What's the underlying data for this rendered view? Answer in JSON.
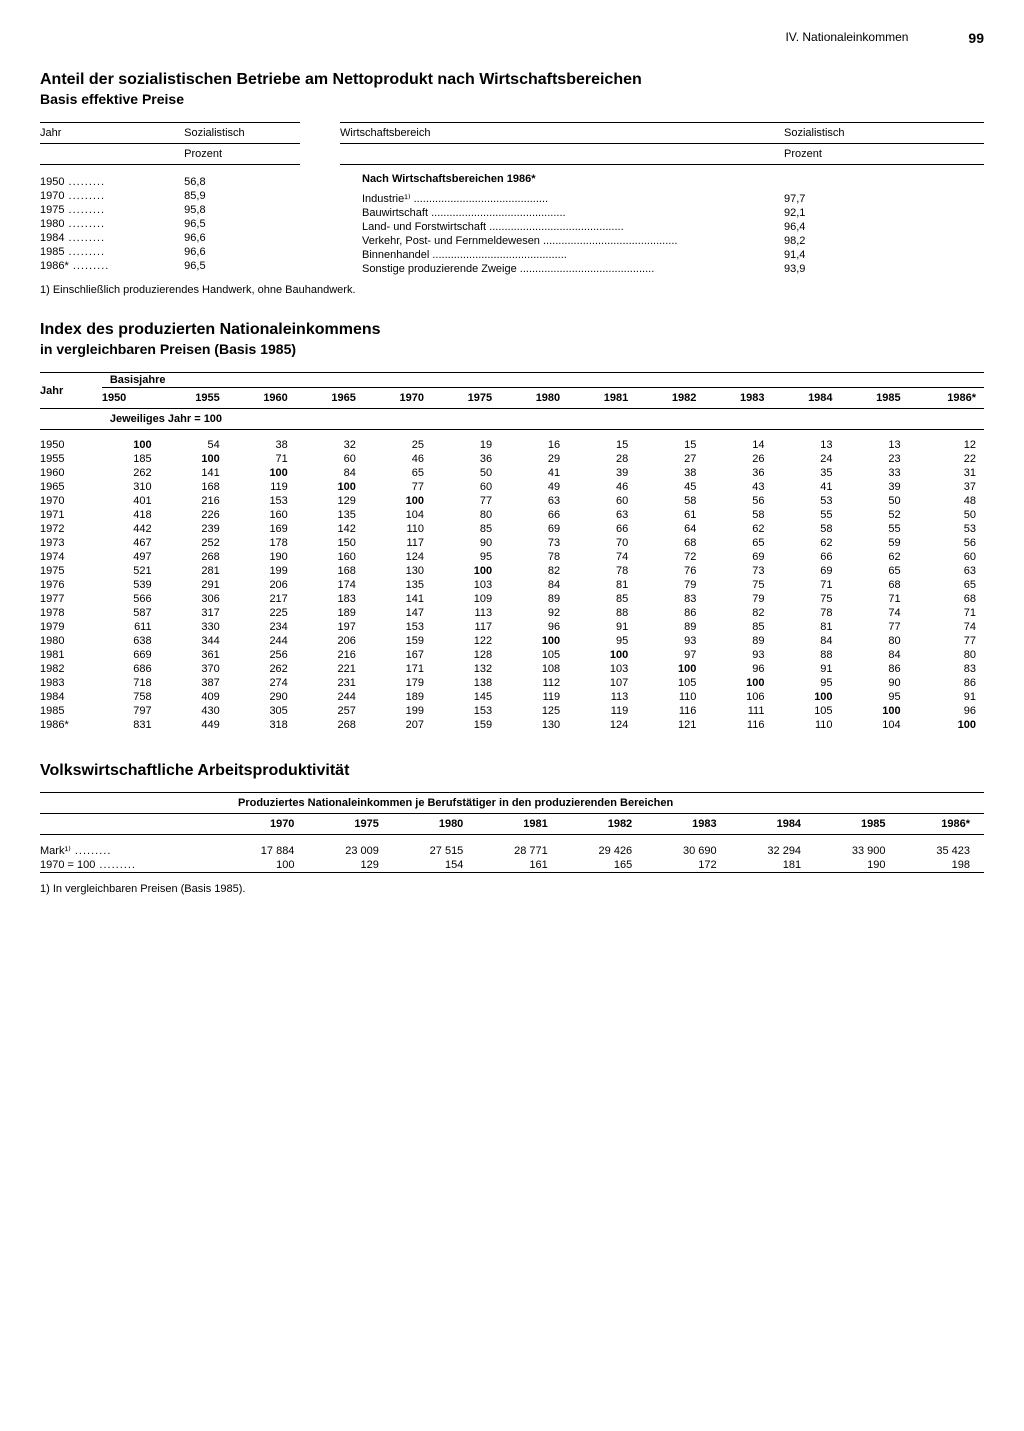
{
  "header": {
    "section": "IV. Nationaleinkommen",
    "page": "99"
  },
  "t1": {
    "title": "Anteil der sozialistischen Betriebe am Nettoprodukt nach Wirtschaftsbereichen",
    "subtitle": "Basis effektive Preise",
    "col_jahr": "Jahr",
    "col_soz": "Sozialistisch",
    "col_prozent": "Prozent",
    "col_bereich": "Wirtschaftsbereich",
    "left_rows": [
      {
        "y": "1950",
        "v": "56,8"
      },
      {
        "y": "1970",
        "v": "85,9"
      },
      {
        "y": "1975",
        "v": "95,8"
      },
      {
        "y": "1980",
        "v": "96,5"
      },
      {
        "y": "1984",
        "v": "96,6"
      },
      {
        "y": "1985",
        "v": "96,6"
      },
      {
        "y": "1986*",
        "v": "96,5"
      }
    ],
    "right_heading": "Nach Wirtschaftsbereichen 1986*",
    "right_rows": [
      {
        "label": "Industrie¹⁾",
        "v": "97,7"
      },
      {
        "label": "Bauwirtschaft",
        "v": "92,1"
      },
      {
        "label": "Land- und Forstwirtschaft",
        "v": "96,4"
      },
      {
        "label": "Verkehr, Post- und Fernmeldewesen",
        "v": "98,2"
      },
      {
        "label": "Binnenhandel",
        "v": "91,4"
      },
      {
        "label": "Sonstige produzierende Zweige",
        "v": "93,9"
      }
    ],
    "footnote": "1) Einschließlich produzierendes Handwerk, ohne Bauhandwerk."
  },
  "t2": {
    "title": "Index des produzierten Nationaleinkommens",
    "subtitle": "in vergleichbaren Preisen (Basis 1985)",
    "col_jahr": "Jahr",
    "col_basis": "Basisjahre",
    "sub_label": "Jeweiliges Jahr = 100",
    "cols": [
      "1950",
      "1955",
      "1960",
      "1965",
      "1970",
      "1975",
      "1980",
      "1981",
      "1982",
      "1983",
      "1984",
      "1985",
      "1986*"
    ],
    "rows": [
      {
        "y": "1950",
        "v": [
          "100",
          "54",
          "38",
          "32",
          "25",
          "19",
          "16",
          "15",
          "15",
          "14",
          "13",
          "13",
          "12"
        ]
      },
      {
        "y": "1955",
        "v": [
          "185",
          "100",
          "71",
          "60",
          "46",
          "36",
          "29",
          "28",
          "27",
          "26",
          "24",
          "23",
          "22"
        ]
      },
      {
        "y": "1960",
        "v": [
          "262",
          "141",
          "100",
          "84",
          "65",
          "50",
          "41",
          "39",
          "38",
          "36",
          "35",
          "33",
          "31"
        ]
      },
      {
        "y": "1965",
        "v": [
          "310",
          "168",
          "119",
          "100",
          "77",
          "60",
          "49",
          "46",
          "45",
          "43",
          "41",
          "39",
          "37"
        ]
      },
      {
        "y": "1970",
        "v": [
          "401",
          "216",
          "153",
          "129",
          "100",
          "77",
          "63",
          "60",
          "58",
          "56",
          "53",
          "50",
          "48"
        ]
      },
      {
        "y": "1971",
        "v": [
          "418",
          "226",
          "160",
          "135",
          "104",
          "80",
          "66",
          "63",
          "61",
          "58",
          "55",
          "52",
          "50"
        ]
      },
      {
        "y": "1972",
        "v": [
          "442",
          "239",
          "169",
          "142",
          "110",
          "85",
          "69",
          "66",
          "64",
          "62",
          "58",
          "55",
          "53"
        ]
      },
      {
        "y": "1973",
        "v": [
          "467",
          "252",
          "178",
          "150",
          "117",
          "90",
          "73",
          "70",
          "68",
          "65",
          "62",
          "59",
          "56"
        ]
      },
      {
        "y": "1974",
        "v": [
          "497",
          "268",
          "190",
          "160",
          "124",
          "95",
          "78",
          "74",
          "72",
          "69",
          "66",
          "62",
          "60"
        ]
      },
      {
        "y": "1975",
        "v": [
          "521",
          "281",
          "199",
          "168",
          "130",
          "100",
          "82",
          "78",
          "76",
          "73",
          "69",
          "65",
          "63"
        ]
      },
      {
        "y": "1976",
        "v": [
          "539",
          "291",
          "206",
          "174",
          "135",
          "103",
          "84",
          "81",
          "79",
          "75",
          "71",
          "68",
          "65"
        ]
      },
      {
        "y": "1977",
        "v": [
          "566",
          "306",
          "217",
          "183",
          "141",
          "109",
          "89",
          "85",
          "83",
          "79",
          "75",
          "71",
          "68"
        ]
      },
      {
        "y": "1978",
        "v": [
          "587",
          "317",
          "225",
          "189",
          "147",
          "113",
          "92",
          "88",
          "86",
          "82",
          "78",
          "74",
          "71"
        ]
      },
      {
        "y": "1979",
        "v": [
          "611",
          "330",
          "234",
          "197",
          "153",
          "117",
          "96",
          "91",
          "89",
          "85",
          "81",
          "77",
          "74"
        ]
      },
      {
        "y": "1980",
        "v": [
          "638",
          "344",
          "244",
          "206",
          "159",
          "122",
          "100",
          "95",
          "93",
          "89",
          "84",
          "80",
          "77"
        ]
      },
      {
        "y": "1981",
        "v": [
          "669",
          "361",
          "256",
          "216",
          "167",
          "128",
          "105",
          "100",
          "97",
          "93",
          "88",
          "84",
          "80"
        ]
      },
      {
        "y": "1982",
        "v": [
          "686",
          "370",
          "262",
          "221",
          "171",
          "132",
          "108",
          "103",
          "100",
          "96",
          "91",
          "86",
          "83"
        ]
      },
      {
        "y": "1983",
        "v": [
          "718",
          "387",
          "274",
          "231",
          "179",
          "138",
          "112",
          "107",
          "105",
          "100",
          "95",
          "90",
          "86"
        ]
      },
      {
        "y": "1984",
        "v": [
          "758",
          "409",
          "290",
          "244",
          "189",
          "145",
          "119",
          "113",
          "110",
          "106",
          "100",
          "95",
          "91"
        ]
      },
      {
        "y": "1985",
        "v": [
          "797",
          "430",
          "305",
          "257",
          "199",
          "153",
          "125",
          "119",
          "116",
          "111",
          "105",
          "100",
          "96"
        ]
      },
      {
        "y": "1986*",
        "v": [
          "831",
          "449",
          "318",
          "268",
          "207",
          "159",
          "130",
          "124",
          "121",
          "116",
          "110",
          "104",
          "100"
        ]
      }
    ]
  },
  "t3": {
    "title": "Volkswirtschaftliche Arbeitsproduktivität",
    "header": "Produziertes Nationaleinkommen je Berufstätiger in den produzierenden Bereichen",
    "cols": [
      "1970",
      "1975",
      "1980",
      "1981",
      "1982",
      "1983",
      "1984",
      "1985",
      "1986*"
    ],
    "rows": [
      {
        "label": "Mark¹⁾",
        "v": [
          "17 884",
          "23 009",
          "27 515",
          "28 771",
          "29 426",
          "30 690",
          "32 294",
          "33 900",
          "35 423"
        ]
      },
      {
        "label": "1970 = 100",
        "v": [
          "100",
          "129",
          "154",
          "161",
          "165",
          "172",
          "181",
          "190",
          "198"
        ]
      }
    ],
    "footnote": "1) In vergleichbaren Preisen (Basis 1985)."
  }
}
